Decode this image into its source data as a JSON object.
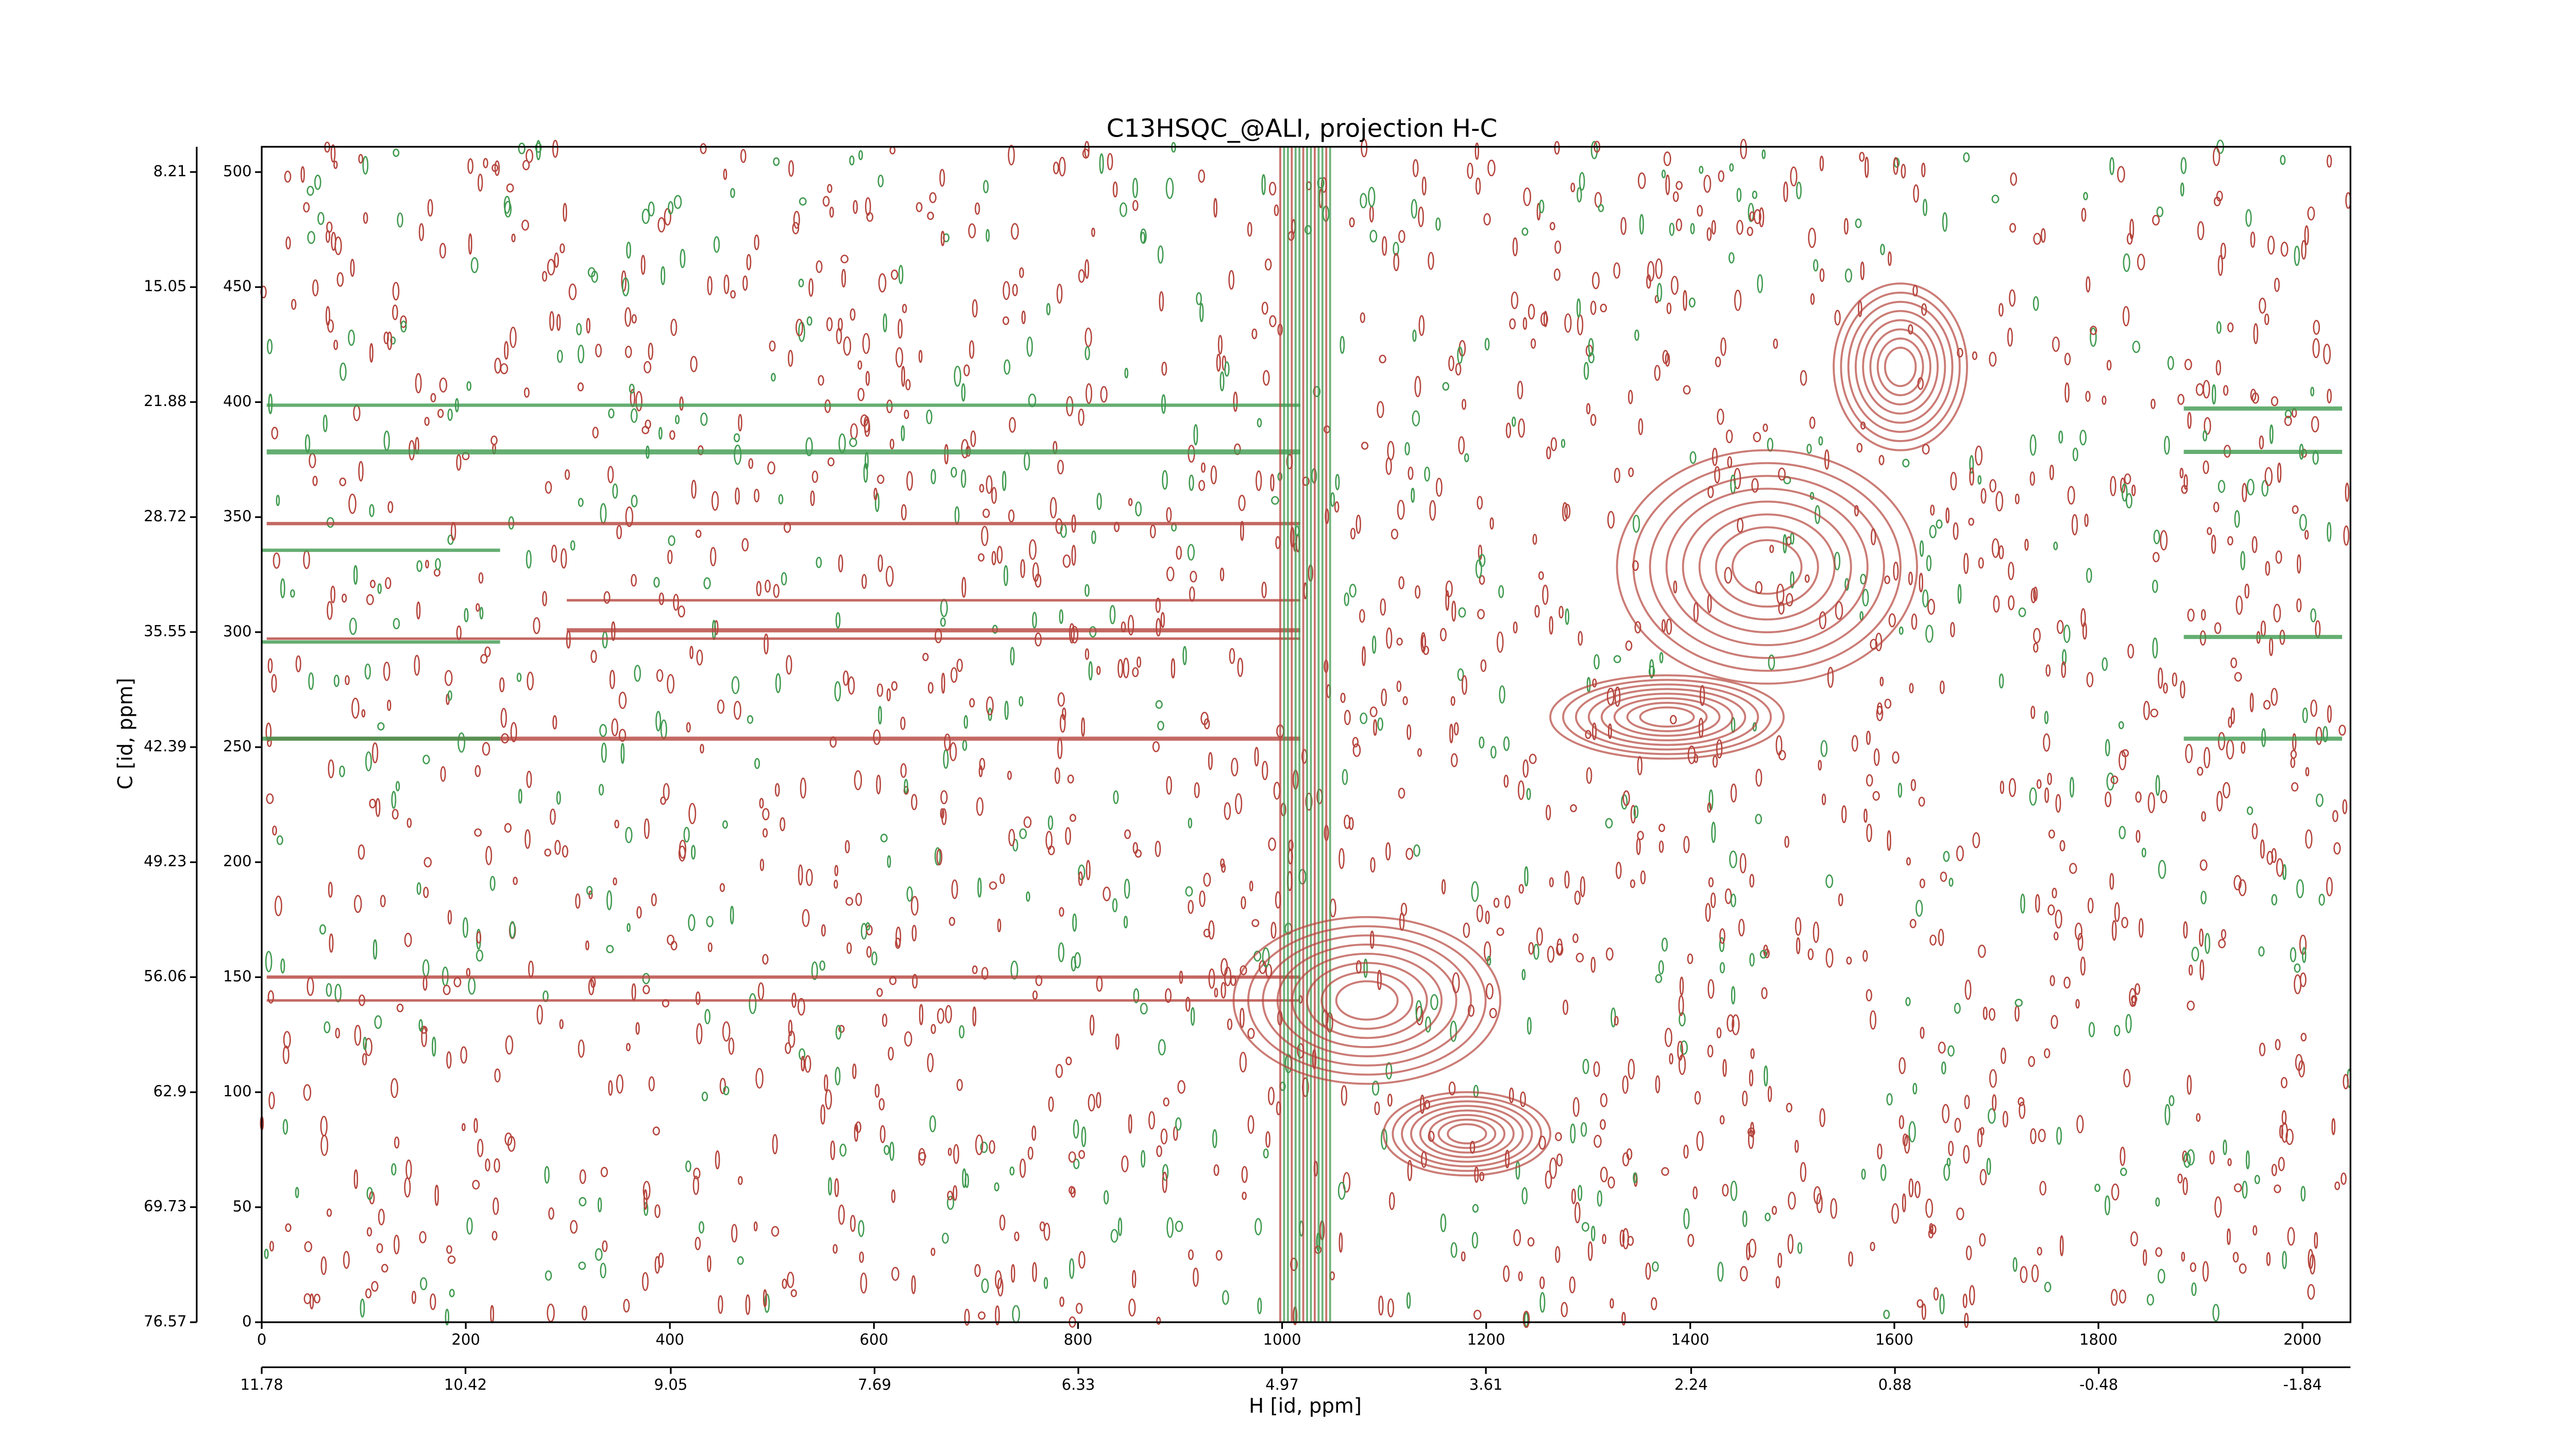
{
  "chart_data": {
    "type": "contour",
    "title": "C13HSQC_@ALI, projection H-C",
    "xlabel": "H [id, ppm]",
    "ylabel": "C [id, ppm]",
    "xlim": [
      0,
      2047
    ],
    "xticks": [
      0,
      200,
      400,
      600,
      800,
      1000,
      1200,
      1400,
      1600,
      1800,
      2000
    ],
    "x2lim": [
      11.78,
      -2.16
    ],
    "x2ticks": [
      11.78,
      10.42,
      9.05,
      7.69,
      6.33,
      4.97,
      3.61,
      2.24,
      0.88,
      -0.48,
      -1.84
    ],
    "ylim": [
      0,
      511
    ],
    "yticks": [
      0,
      50,
      100,
      150,
      200,
      250,
      300,
      350,
      400,
      450,
      500
    ],
    "y2lim": [
      76.57,
      6.71
    ],
    "y2ticks": [
      8.21,
      15.05,
      21.88,
      28.72,
      35.55,
      42.39,
      49.23,
      56.06,
      62.9,
      69.73,
      76.57
    ],
    "colors": {
      "positive": "#b5443c",
      "negative": "#3f9a4f"
    }
  }
}
